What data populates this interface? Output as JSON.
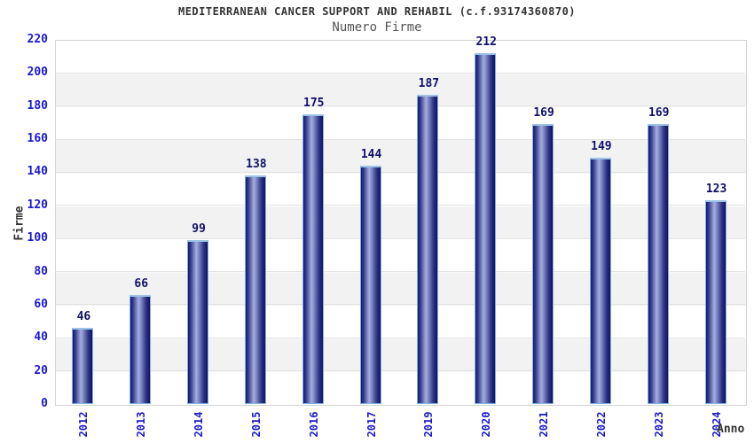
{
  "title": "MEDITERRANEAN CANCER SUPPORT AND REHABIL (c.f.93174360870)",
  "subtitle": "Numero Firme",
  "y_axis_title": "Firme",
  "x_axis_title": "Anno",
  "colors": {
    "tick_label_blue": "#1a1acc",
    "value_label_navy": "#10106a",
    "title_text": "#333333",
    "subtitle_text": "#555555",
    "band_gray": "#f2f2f2",
    "plot_border": "#d3d3d3",
    "bar_dark_edge": "#181b6e",
    "bar_highlight": "#a6aed8",
    "bar_top_edge": "#9cc2e8"
  },
  "chart_data": {
    "type": "bar",
    "title": "MEDITERRANEAN CANCER SUPPORT AND REHABIL (c.f.93174360870)",
    "subtitle": "Numero Firme",
    "categories": [
      "2012",
      "2013",
      "2014",
      "2015",
      "2016",
      "2017",
      "2019",
      "2020",
      "2021",
      "2022",
      "2023",
      "2024"
    ],
    "values": [
      46,
      66,
      99,
      138,
      175,
      144,
      187,
      212,
      169,
      149,
      169,
      123
    ],
    "xlabel": "Anno",
    "ylabel": "Firme",
    "ylim": [
      0,
      220
    ],
    "ytick_step": 20,
    "yticks": [
      0,
      20,
      40,
      60,
      80,
      100,
      120,
      140,
      160,
      180,
      200,
      220
    ],
    "grid": "horizontal-alternating-bands",
    "legend_position": "none",
    "bar_value_labels_shown": true
  }
}
